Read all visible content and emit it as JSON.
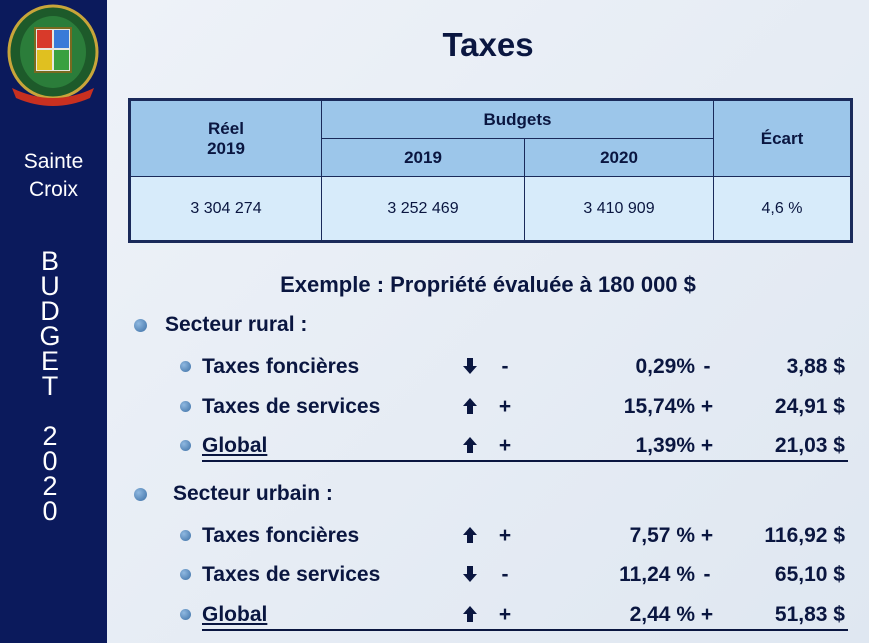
{
  "sidebar": {
    "name_line1": "Sainte",
    "name_line2": "Croix",
    "vertical": "BUDGET 2020"
  },
  "title": "Taxes",
  "table": {
    "reel_label": "Réel",
    "reel_year": "2019",
    "budgets_label": "Budgets",
    "budget_years": [
      "2019",
      "2020"
    ],
    "ecart_label": "Écart",
    "row": [
      "3 304 274",
      "3 252 469",
      "3 410 909",
      "4,6 %"
    ]
  },
  "example": "Exemple :  Propriété évaluée à 180 000 $",
  "sections": [
    {
      "title": "Secteur rural :",
      "rows": [
        {
          "label": "Taxes foncières",
          "trend": "down",
          "sign": "-",
          "percent": "0,29%",
          "sign2": "-",
          "amount": "3,88 $"
        },
        {
          "label": "Taxes de services",
          "trend": "up",
          "sign": "+",
          "percent": "15,74%",
          "sign2": "+",
          "amount": "24,91 $"
        },
        {
          "label": "Global",
          "trend": "up",
          "sign": "+",
          "percent": "1,39%",
          "sign2": "+",
          "amount": "21,03 $",
          "underline": true
        }
      ]
    },
    {
      "title": "Secteur urbain :",
      "rows": [
        {
          "label": "Taxes foncières",
          "trend": "up",
          "sign": "+",
          "percent": "7,57 %",
          "sign2": "+",
          "amount": "116,92 $"
        },
        {
          "label": "Taxes de services",
          "trend": "down",
          "sign": "-",
          "percent": "11,24 %",
          "sign2": "-",
          "amount": "65,10 $"
        },
        {
          "label": "Global",
          "trend": "up",
          "sign": "+",
          "percent": "2,44 %",
          "sign2": "+",
          "amount": "51,83 $",
          "underline": true
        }
      ]
    }
  ]
}
